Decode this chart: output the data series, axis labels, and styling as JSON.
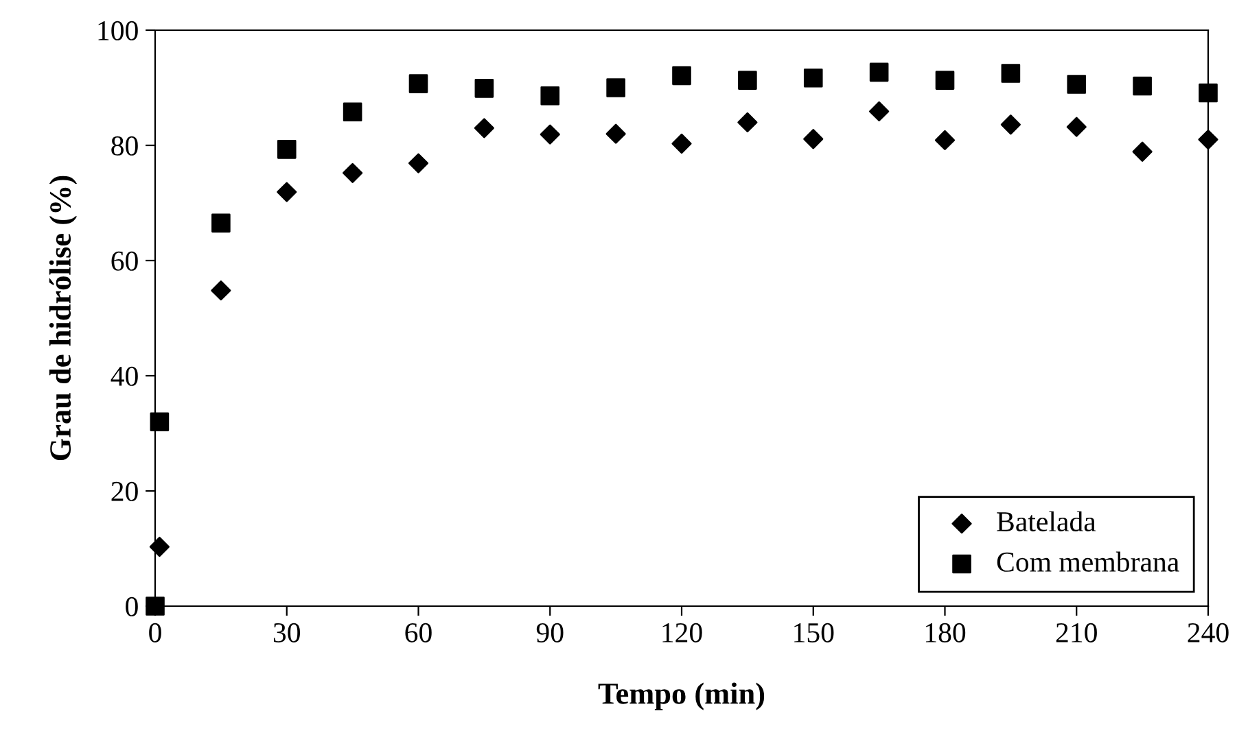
{
  "chart_data": {
    "type": "scatter",
    "xlabel": "Tempo (min)",
    "ylabel": "Grau de hidrólise (%)",
    "xlim": [
      0,
      240
    ],
    "xticks": [
      0,
      30,
      60,
      90,
      120,
      150,
      180,
      210,
      240
    ],
    "ylim": [
      0,
      100
    ],
    "yticks": [
      0,
      20,
      40,
      60,
      80,
      100
    ],
    "grid": false,
    "legend": "bottom right",
    "series": [
      {
        "name": "Batelada",
        "color": "#000000",
        "marker": "diamond",
        "x": [
          1,
          15,
          30,
          45,
          60,
          75,
          90,
          105,
          120,
          135,
          150,
          165,
          180,
          195,
          210,
          225,
          240
        ],
        "values": [
          10.3,
          54.8,
          71.9,
          75.2,
          76.9,
          83.0,
          81.9,
          82.0,
          80.3,
          84.0,
          81.1,
          85.9,
          80.9,
          83.6,
          83.2,
          78.9,
          81.0
        ]
      },
      {
        "name": "Com membrana",
        "color": "#000000",
        "marker": "square",
        "x": [
          0,
          1,
          15,
          30,
          45,
          60,
          75,
          90,
          105,
          120,
          135,
          150,
          165,
          180,
          195,
          210,
          225,
          240
        ],
        "values": [
          0,
          32.0,
          66.5,
          79.3,
          85.8,
          90.7,
          89.9,
          88.6,
          90.0,
          92.1,
          91.3,
          91.7,
          92.7,
          91.3,
          92.5,
          90.6,
          90.3,
          89.1
        ]
      }
    ]
  }
}
